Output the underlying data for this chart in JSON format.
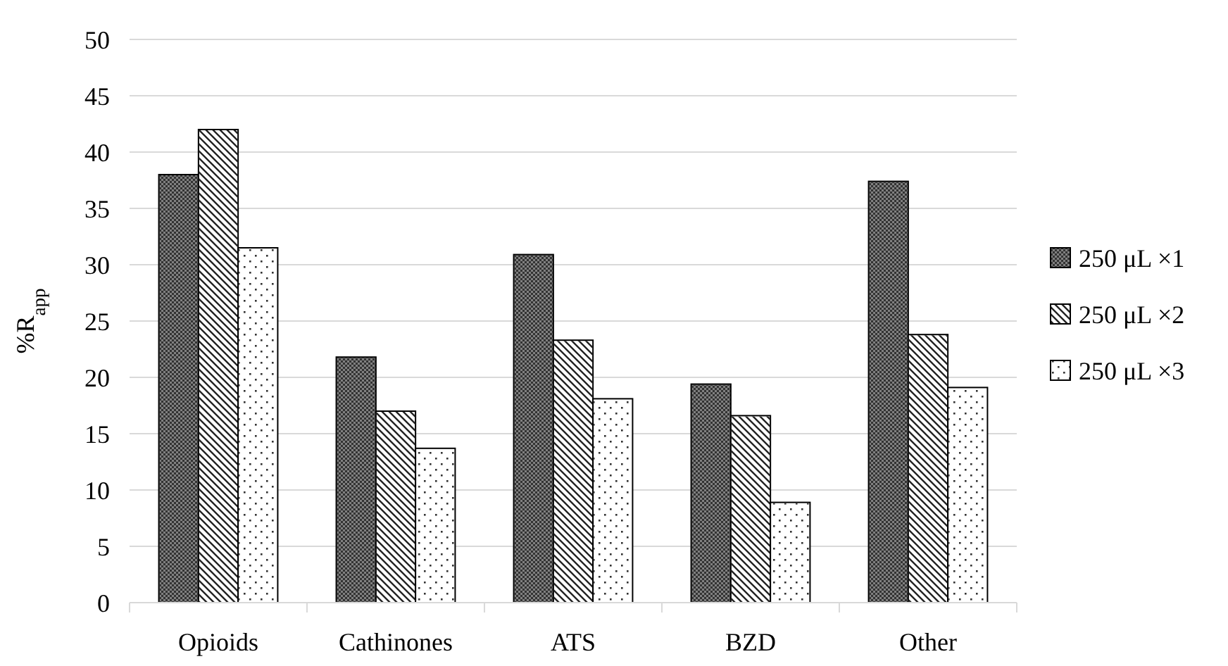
{
  "chart_data": {
    "type": "bar",
    "ylabel": "%R$_{app}$",
    "categories": [
      "Opioids",
      "Cathinones",
      "ATS",
      "BZD",
      "Other"
    ],
    "series": [
      {
        "name": "250 μL ×1",
        "color": "#808080",
        "values": [
          38.0,
          21.8,
          30.9,
          19.4,
          37.4
        ]
      },
      {
        "name": "250 μL ×2",
        "color": "#ffffff",
        "values": [
          42.0,
          17.0,
          23.3,
          16.6,
          23.8
        ]
      },
      {
        "name": "250 μL ×3",
        "color": "#ffffff",
        "values": [
          31.5,
          13.7,
          18.1,
          8.9,
          19.1
        ]
      }
    ],
    "ylim": [
      0,
      50
    ],
    "yticks": [
      0,
      5,
      10,
      15,
      20,
      25,
      30,
      35,
      40,
      45,
      50
    ],
    "grid": "y",
    "legend": "right"
  }
}
